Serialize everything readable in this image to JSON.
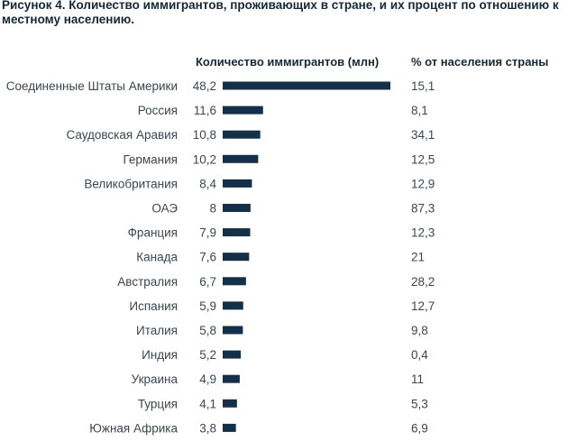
{
  "title": "Рисунок 4. Количество иммигрантов, проживающих в стране, и их процент по отношению к местному населению.",
  "chart_data": {
    "type": "bar",
    "orientation": "horizontal",
    "title": "Рисунок 4. Количество иммигрантов, проживающих в стране, и их процент по отношению к местному населению.",
    "categories": [
      "Соединенные Штаты Америки",
      "Россия",
      "Саудовская Аравия",
      "Германия",
      "Великобритания",
      "ОАЭ",
      "Франция",
      "Канада",
      "Австралия",
      "Испания",
      "Италия",
      "Индия",
      "Украина",
      "Турция",
      "Южная Африка"
    ],
    "series": [
      {
        "name": "Количество иммигрантов (млн)",
        "values": [
          48.2,
          11.6,
          10.8,
          10.2,
          8.4,
          8,
          7.9,
          7.6,
          6.7,
          5.9,
          5.8,
          5.2,
          4.9,
          4.1,
          3.8
        ]
      },
      {
        "name": "% от населения страны",
        "values": [
          15.1,
          8.1,
          34.1,
          12.5,
          12.9,
          87.3,
          12.3,
          21,
          28.2,
          12.7,
          9.8,
          0.4,
          11,
          5.3,
          6.9
        ]
      }
    ],
    "value_labels": [
      "48,2",
      "11,6",
      "10,8",
      "10,2",
      "8,4",
      "8",
      "7,9",
      "7,6",
      "6,7",
      "5,9",
      "5,8",
      "5,2",
      "4,9",
      "4,1",
      "3,8"
    ],
    "percent_labels": [
      "15,1",
      "8,1",
      "34,1",
      "12,5",
      "12,9",
      "87,3",
      "12,3",
      "21",
      "28,2",
      "12,7",
      "9,8",
      "0,4",
      "11",
      "5,3",
      "6,9"
    ],
    "bar_color": "#12304a",
    "grid": false,
    "legend": "none"
  }
}
